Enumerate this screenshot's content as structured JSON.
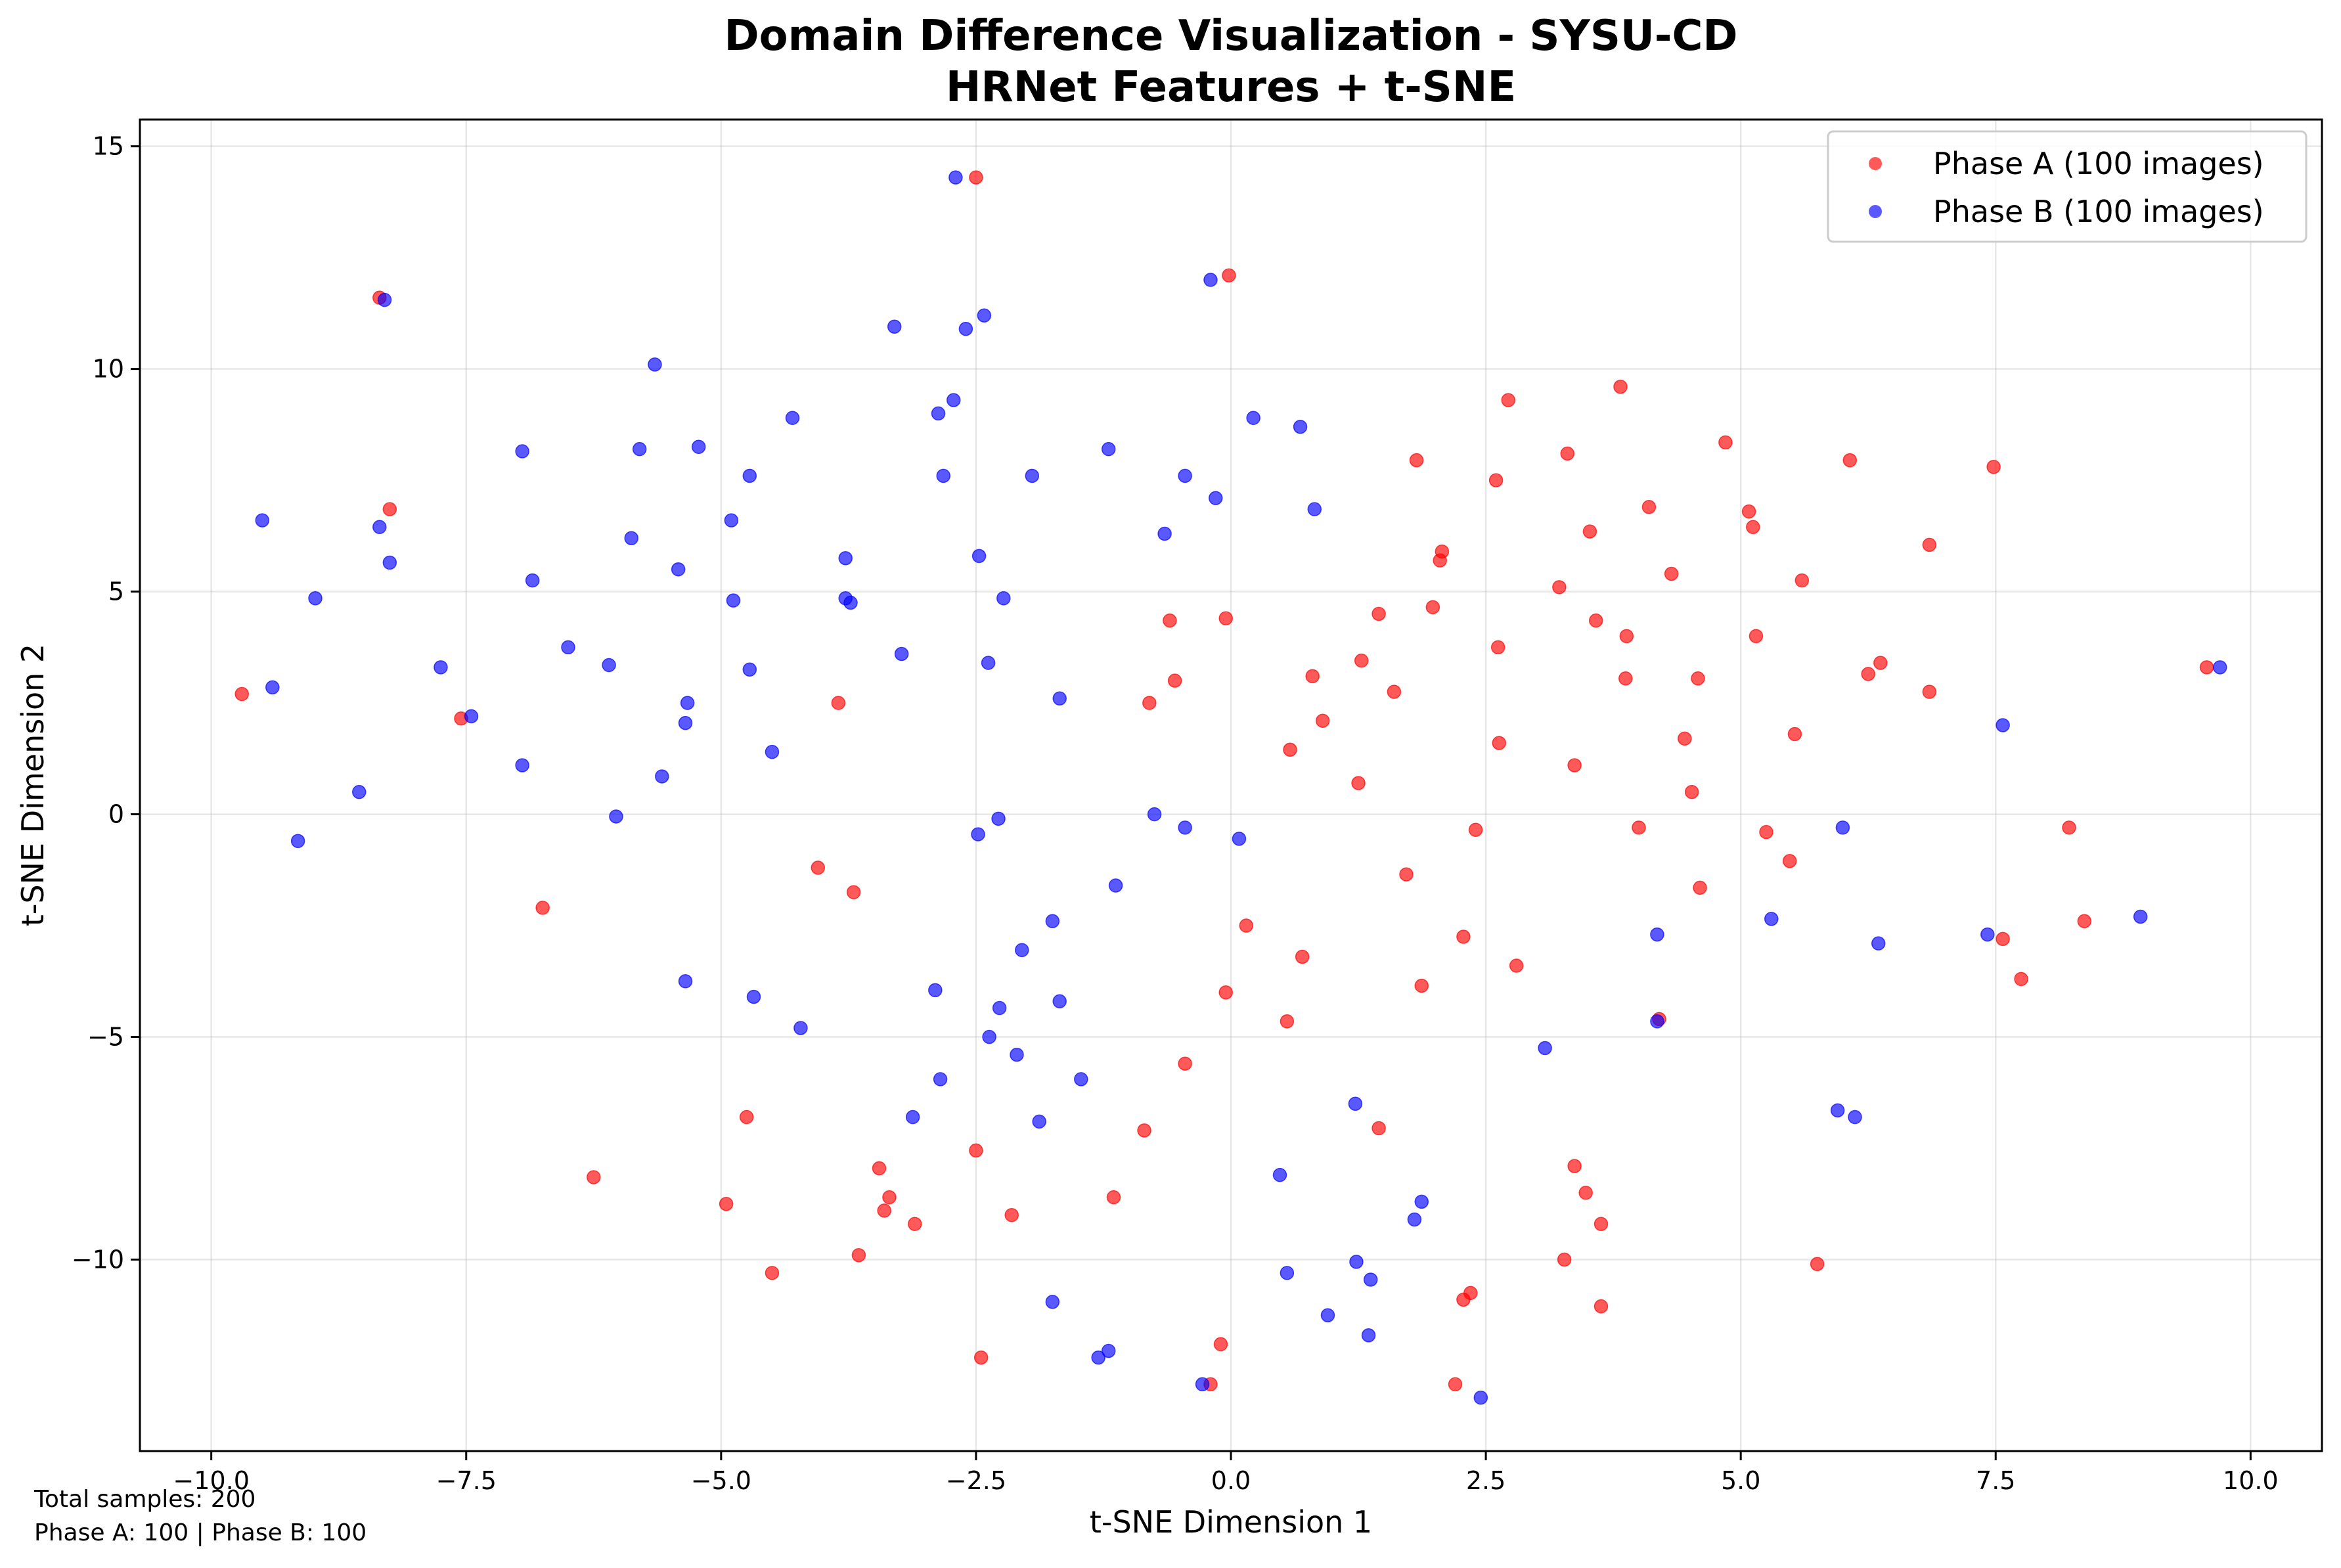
{
  "chart_data": {
    "type": "scatter",
    "title_line1": "Domain Difference Visualization - SYSU-CD",
    "title_line2": "HRNet Features + t-SNE",
    "xlabel": "t-SNE Dimension 1",
    "ylabel": "t-SNE Dimension 2",
    "xlim": [
      -10.7,
      10.7
    ],
    "ylim": [
      -14.3,
      15.6
    ],
    "xticks": [
      -10.0,
      -7.5,
      -5.0,
      -2.5,
      0.0,
      2.5,
      5.0,
      7.5,
      10.0
    ],
    "xtick_labels": [
      "−10.0",
      "−7.5",
      "−5.0",
      "−2.5",
      "0.0",
      "2.5",
      "5.0",
      "7.5",
      "10.0"
    ],
    "yticks": [
      -10,
      -5,
      0,
      5,
      10,
      15
    ],
    "ytick_labels": [
      "−10",
      "−5",
      "0",
      "5",
      "10",
      "15"
    ],
    "grid": true,
    "legend_position": "top-right",
    "series": [
      {
        "name": "Phase A (100 images)",
        "color": "#ff0000",
        "points": [
          [
            -2.5,
            14.3
          ],
          [
            -0.02,
            12.1
          ],
          [
            -8.35,
            11.6
          ],
          [
            -8.25,
            6.85
          ],
          [
            -9.7,
            2.7
          ],
          [
            -7.55,
            2.15
          ],
          [
            -6.75,
            -2.1
          ],
          [
            -6.25,
            -8.15
          ],
          [
            -4.95,
            -8.75
          ],
          [
            -4.75,
            -6.8
          ],
          [
            -4.5,
            -10.3
          ],
          [
            -4.05,
            -1.2
          ],
          [
            -3.85,
            2.5
          ],
          [
            -3.7,
            -1.75
          ],
          [
            -3.65,
            -9.9
          ],
          [
            -3.45,
            -7.95
          ],
          [
            -3.4,
            -8.9
          ],
          [
            -3.35,
            -8.6
          ],
          [
            -3.1,
            -9.2
          ],
          [
            -2.5,
            -7.55
          ],
          [
            -2.45,
            -12.2
          ],
          [
            -2.15,
            -9.0
          ],
          [
            -1.15,
            -8.6
          ],
          [
            -0.85,
            -7.1
          ],
          [
            -0.8,
            2.5
          ],
          [
            -0.6,
            4.35
          ],
          [
            -0.55,
            3.0
          ],
          [
            -0.45,
            -5.6
          ],
          [
            -0.2,
            -12.8
          ],
          [
            -0.1,
            -11.9
          ],
          [
            -0.05,
            -4.0
          ],
          [
            -0.05,
            4.4
          ],
          [
            0.15,
            -2.5
          ],
          [
            0.55,
            -4.65
          ],
          [
            0.58,
            1.45
          ],
          [
            0.7,
            -3.2
          ],
          [
            0.8,
            3.1
          ],
          [
            0.9,
            2.1
          ],
          [
            1.25,
            0.7
          ],
          [
            1.28,
            3.45
          ],
          [
            1.45,
            -7.05
          ],
          [
            1.45,
            4.5
          ],
          [
            1.6,
            2.75
          ],
          [
            1.72,
            -1.35
          ],
          [
            1.82,
            7.95
          ],
          [
            1.87,
            -3.85
          ],
          [
            1.98,
            4.65
          ],
          [
            2.05,
            5.7
          ],
          [
            2.07,
            5.9
          ],
          [
            2.2,
            -12.8
          ],
          [
            2.28,
            -10.9
          ],
          [
            2.28,
            -2.75
          ],
          [
            2.35,
            -10.75
          ],
          [
            2.4,
            -0.35
          ],
          [
            2.6,
            7.5
          ],
          [
            2.62,
            3.75
          ],
          [
            2.63,
            1.6
          ],
          [
            2.72,
            9.3
          ],
          [
            2.8,
            -3.4
          ],
          [
            3.22,
            5.1
          ],
          [
            3.27,
            -10.0
          ],
          [
            3.3,
            8.1
          ],
          [
            3.37,
            -7.9
          ],
          [
            3.37,
            1.1
          ],
          [
            3.48,
            -8.5
          ],
          [
            3.52,
            6.35
          ],
          [
            3.58,
            4.35
          ],
          [
            3.63,
            -11.05
          ],
          [
            3.63,
            -9.2
          ],
          [
            3.82,
            9.6
          ],
          [
            3.87,
            3.05
          ],
          [
            3.88,
            4.0
          ],
          [
            4.0,
            -0.3
          ],
          [
            4.1,
            6.9
          ],
          [
            4.2,
            -4.6
          ],
          [
            4.32,
            5.4
          ],
          [
            4.45,
            1.7
          ],
          [
            4.52,
            0.5
          ],
          [
            4.58,
            3.05
          ],
          [
            4.6,
            -1.65
          ],
          [
            4.85,
            8.35
          ],
          [
            5.08,
            6.8
          ],
          [
            5.12,
            6.45
          ],
          [
            5.15,
            4.0
          ],
          [
            5.25,
            -0.4
          ],
          [
            5.48,
            -1.05
          ],
          [
            5.53,
            1.8
          ],
          [
            5.6,
            5.25
          ],
          [
            5.75,
            -10.1
          ],
          [
            6.07,
            7.95
          ],
          [
            6.25,
            3.15
          ],
          [
            6.37,
            3.4
          ],
          [
            6.85,
            2.75
          ],
          [
            6.85,
            6.05
          ],
          [
            7.48,
            7.8
          ],
          [
            7.57,
            -2.8
          ],
          [
            7.75,
            -3.7
          ],
          [
            8.22,
            -0.3
          ],
          [
            8.37,
            -2.4
          ],
          [
            9.57,
            3.3
          ]
        ]
      },
      {
        "name": "Phase B (100 images)",
        "color": "#0000ff",
        "points": [
          [
            -2.7,
            14.3
          ],
          [
            -0.2,
            12.0
          ],
          [
            -8.3,
            11.55
          ],
          [
            -3.3,
            10.95
          ],
          [
            -2.6,
            10.9
          ],
          [
            -2.42,
            11.2
          ],
          [
            -5.65,
            10.1
          ],
          [
            -2.72,
            9.3
          ],
          [
            -2.87,
            9.0
          ],
          [
            -4.3,
            8.9
          ],
          [
            0.22,
            8.9
          ],
          [
            0.68,
            8.7
          ],
          [
            -6.95,
            8.15
          ],
          [
            -5.8,
            8.2
          ],
          [
            -5.22,
            8.25
          ],
          [
            -1.2,
            8.2
          ],
          [
            -4.72,
            7.6
          ],
          [
            -2.82,
            7.6
          ],
          [
            -1.95,
            7.6
          ],
          [
            -0.45,
            7.6
          ],
          [
            -0.15,
            7.1
          ],
          [
            0.82,
            6.85
          ],
          [
            -9.5,
            6.6
          ],
          [
            -8.35,
            6.45
          ],
          [
            -4.9,
            6.6
          ],
          [
            -0.65,
            6.3
          ],
          [
            -8.25,
            5.65
          ],
          [
            -5.88,
            6.2
          ],
          [
            -6.85,
            5.25
          ],
          [
            -5.42,
            5.5
          ],
          [
            -3.78,
            5.75
          ],
          [
            -2.47,
            5.8
          ],
          [
            -8.98,
            4.85
          ],
          [
            -4.88,
            4.8
          ],
          [
            -3.78,
            4.85
          ],
          [
            -3.73,
            4.75
          ],
          [
            -2.23,
            4.85
          ],
          [
            -6.5,
            3.75
          ],
          [
            -6.1,
            3.35
          ],
          [
            -3.23,
            3.6
          ],
          [
            -2.38,
            3.4
          ],
          [
            -7.75,
            3.3
          ],
          [
            -9.4,
            2.85
          ],
          [
            -7.45,
            2.2
          ],
          [
            -5.33,
            2.5
          ],
          [
            -4.72,
            3.25
          ],
          [
            -1.68,
            2.6
          ],
          [
            -5.35,
            2.05
          ],
          [
            -4.5,
            1.4
          ],
          [
            -6.95,
            1.1
          ],
          [
            -5.58,
            0.85
          ],
          [
            -8.55,
            0.5
          ],
          [
            -6.03,
            -0.05
          ],
          [
            -2.28,
            -0.1
          ],
          [
            -2.48,
            -0.45
          ],
          [
            -0.75,
            0.0
          ],
          [
            -0.45,
            -0.3
          ],
          [
            0.08,
            -0.55
          ],
          [
            -9.15,
            -0.6
          ],
          [
            -1.13,
            -1.6
          ],
          [
            -1.75,
            -2.4
          ],
          [
            -2.05,
            -3.05
          ],
          [
            -2.9,
            -3.95
          ],
          [
            -1.68,
            -4.2
          ],
          [
            -2.27,
            -4.35
          ],
          [
            -4.68,
            -4.1
          ],
          [
            -5.35,
            -3.75
          ],
          [
            -4.22,
            -4.8
          ],
          [
            -2.37,
            -5.0
          ],
          [
            -2.1,
            -5.4
          ],
          [
            -1.47,
            -5.95
          ],
          [
            -2.85,
            -5.95
          ],
          [
            -3.12,
            -6.8
          ],
          [
            -1.88,
            -6.9
          ],
          [
            0.48,
            -8.1
          ],
          [
            1.22,
            -6.5
          ],
          [
            1.23,
            -10.05
          ],
          [
            1.37,
            -10.45
          ],
          [
            0.55,
            -10.3
          ],
          [
            0.95,
            -11.25
          ],
          [
            1.35,
            -11.7
          ],
          [
            1.87,
            -8.7
          ],
          [
            1.8,
            -9.1
          ],
          [
            -1.75,
            -10.95
          ],
          [
            -1.2,
            -12.05
          ],
          [
            -1.3,
            -12.2
          ],
          [
            -0.28,
            -12.8
          ],
          [
            2.45,
            -13.1
          ],
          [
            3.08,
            -5.25
          ],
          [
            4.18,
            -4.65
          ],
          [
            4.18,
            -2.7
          ],
          [
            5.3,
            -2.35
          ],
          [
            5.95,
            -6.65
          ],
          [
            6.12,
            -6.8
          ],
          [
            6.0,
            -0.3
          ],
          [
            6.35,
            -2.9
          ],
          [
            7.42,
            -2.7
          ],
          [
            7.57,
            2.0
          ],
          [
            8.92,
            -2.3
          ],
          [
            9.7,
            3.3
          ]
        ]
      }
    ],
    "footnote_line1": "Total samples: 200",
    "footnote_line2": "Phase A: 100 | Phase B: 100"
  }
}
